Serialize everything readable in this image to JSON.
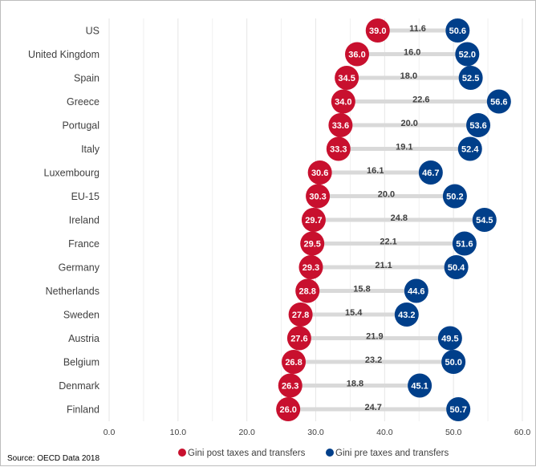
{
  "chart_data": {
    "type": "dumbbell",
    "categories": [
      "US",
      "United Kingdom",
      "Spain",
      "Greece",
      "Portugal",
      "Italy",
      "Luxembourg",
      "EU-15",
      "Ireland",
      "France",
      "Germany",
      "Netherlands",
      "Sweden",
      "Austria",
      "Belgium",
      "Denmark",
      "Finland"
    ],
    "series": [
      {
        "name": "Gini post taxes and transfers",
        "color": "#c8102e",
        "values": [
          39.0,
          36.0,
          34.5,
          34.0,
          33.6,
          33.3,
          30.6,
          30.3,
          29.7,
          29.5,
          29.3,
          28.8,
          27.8,
          27.6,
          26.8,
          26.3,
          26.0
        ]
      },
      {
        "name": "Gini pre taxes and transfers",
        "color": "#003f8a",
        "values": [
          50.6,
          52.0,
          52.5,
          56.6,
          53.6,
          52.4,
          46.7,
          50.2,
          54.5,
          51.6,
          50.4,
          44.6,
          43.2,
          49.5,
          50.0,
          45.1,
          50.7
        ]
      }
    ],
    "differences": [
      11.6,
      16.0,
      18.0,
      22.6,
      20.0,
      19.1,
      16.1,
      20.0,
      24.8,
      22.1,
      21.1,
      15.8,
      15.4,
      21.9,
      23.2,
      18.8,
      24.7
    ],
    "xlim": [
      0,
      60
    ],
    "xticks": [
      0,
      10,
      20,
      30,
      40,
      50,
      60
    ],
    "tick_labels": [
      "0.0",
      "10.0",
      "20.0",
      "30.0",
      "40.0",
      "50.0",
      "60.0"
    ],
    "grid": true,
    "legend_position": "bottom",
    "source": "Source: OECD Data 2018",
    "connector_color": "#d9d9d9",
    "grid_color": "#e6e6e6"
  }
}
